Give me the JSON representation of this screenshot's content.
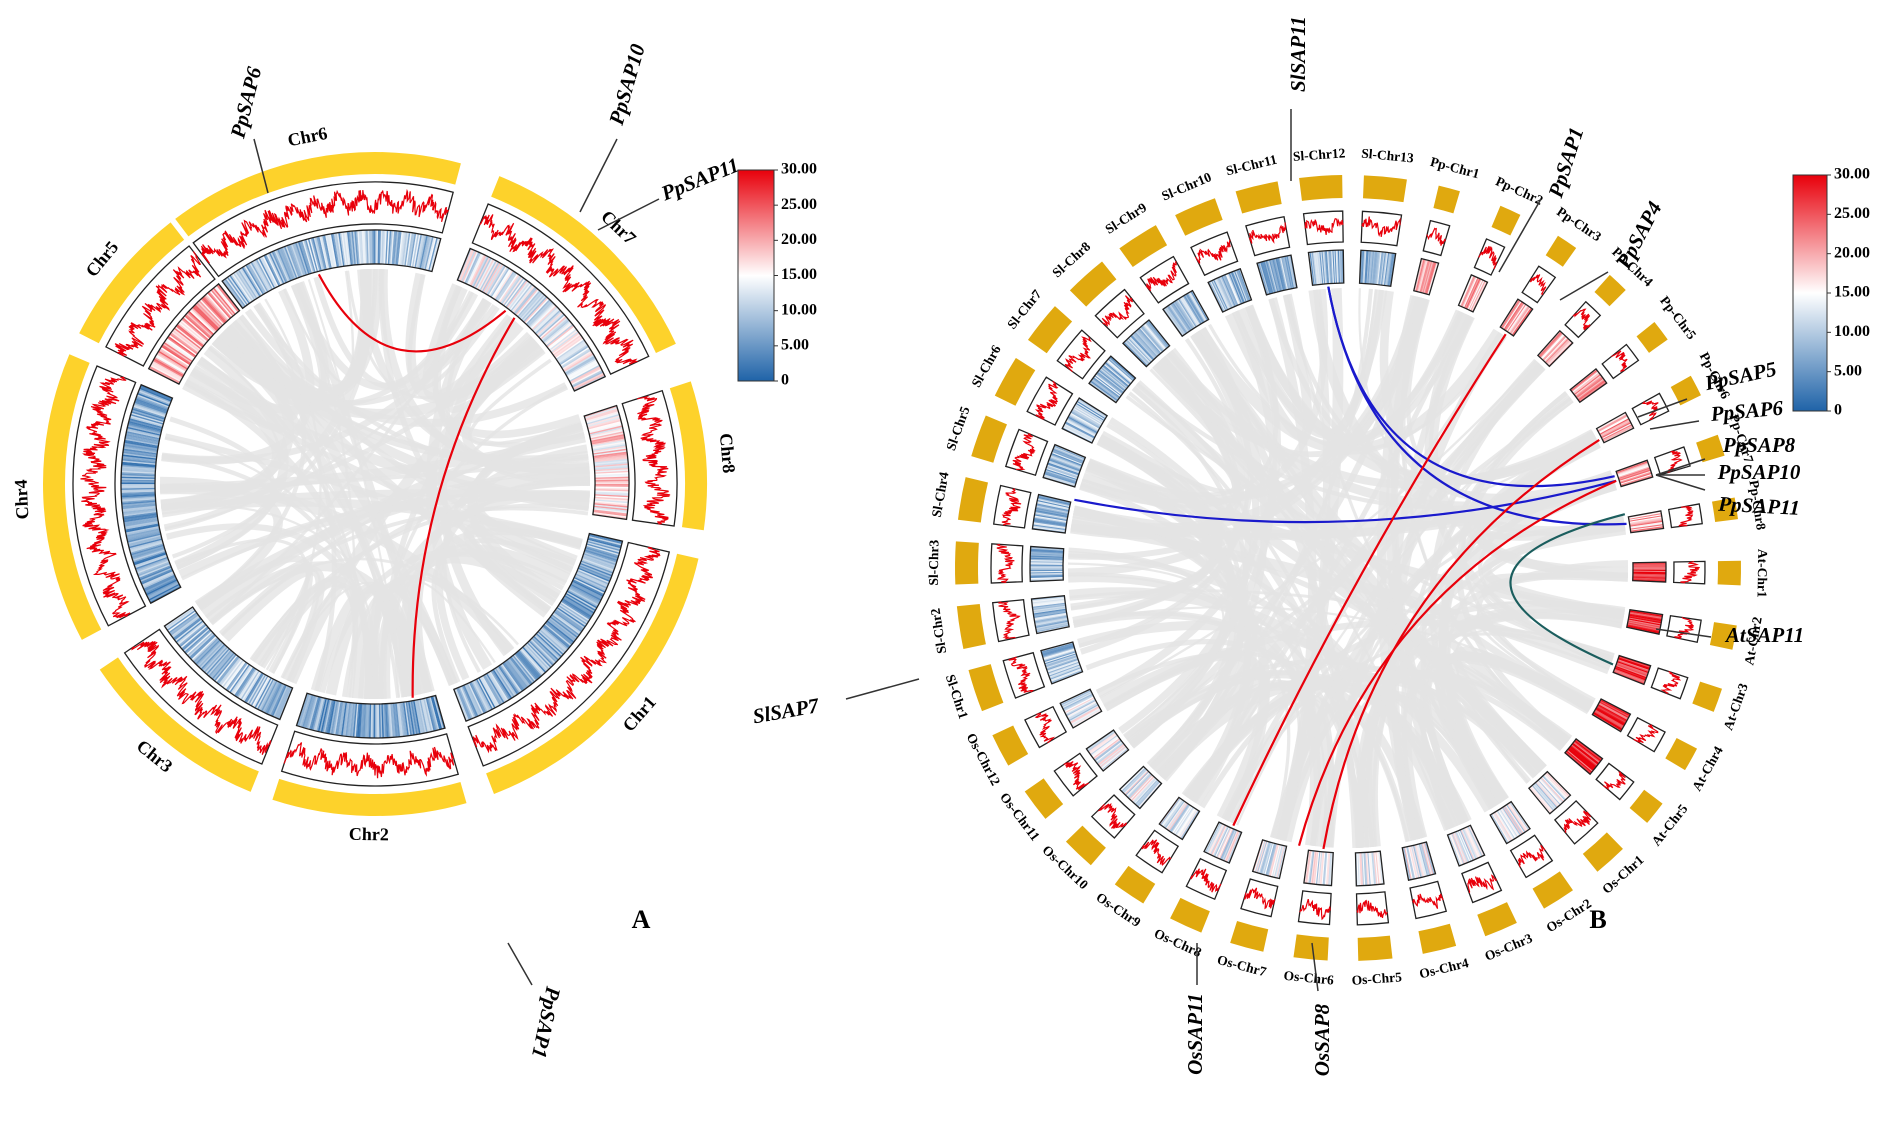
{
  "panels": [
    {
      "letter": "A",
      "chromosomes": [
        "Chr1",
        "Chr2",
        "Chr3",
        "Chr4",
        "Chr5",
        "Chr6",
        "Chr7",
        "Chr8"
      ],
      "genes": [
        "PpSAP6",
        "PpSAP10",
        "PpSAP11",
        "PpSAP1"
      ],
      "colorbar_ticks": [
        {
          "value": 30,
          "label": "30.00"
        },
        {
          "value": 25,
          "label": "25.00"
        },
        {
          "value": 20,
          "label": "20.00"
        },
        {
          "value": 15,
          "label": "15.00"
        },
        {
          "value": 10,
          "label": "10.00"
        },
        {
          "value": 5,
          "label": "5.00"
        },
        0
      ]
    },
    {
      "letter": "B",
      "chromosomes": [
        "Sl-Chr12",
        "Sl-Chr13",
        "Pp-Chr1",
        "Pp-Chr2",
        "Pp-Chr3",
        "Pp-Chr4",
        "Pp-Chr5",
        "Pp-Chr6",
        "Pp-Chr7",
        "Pp-Chr8",
        "At-Chr1",
        "At-Chr2",
        "At-Chr3",
        "At-Chr4",
        "At-Chr5",
        "Os-Chr1",
        "Os-Chr2",
        "Os-Chr3",
        "Os-Chr4",
        "Os-Chr5",
        "Os-Chr6",
        "Os-Chr7",
        "Os-Chr8",
        "Os-Chr9",
        "Os-Chr10",
        "Os-Chr11",
        "Os-Chr12",
        "Sl-Chr1",
        "Sl-Chr2",
        "Sl-Chr3",
        "Sl-Chr4",
        "Sl-Chr5",
        "Sl-Chr6",
        "Sl-Chr7",
        "Sl-Chr8",
        "Sl-Chr9",
        "Sl-Chr10",
        "Sl-Chr11"
      ],
      "genes": [
        "SlSAP11",
        "PpSAP1",
        "PpSAP4",
        "PpSAP5",
        "PpSAP6",
        "PpSAP8",
        "PpSAP10",
        "PpSAP11",
        "AtSAP11",
        "SlSAP7",
        "OsSAP11",
        "OsSAP8"
      ],
      "colorbar_ticks": [
        {
          "value": 30,
          "label": "30.00"
        },
        {
          "value": 25,
          "label": "25.00"
        },
        {
          "value": 20,
          "label": "20.00"
        },
        {
          "value": 15,
          "label": "15.00"
        },
        {
          "value": 10,
          "label": "10.00"
        },
        {
          "value": 5,
          "label": "5.00"
        },
        0
      ]
    }
  ]
}
